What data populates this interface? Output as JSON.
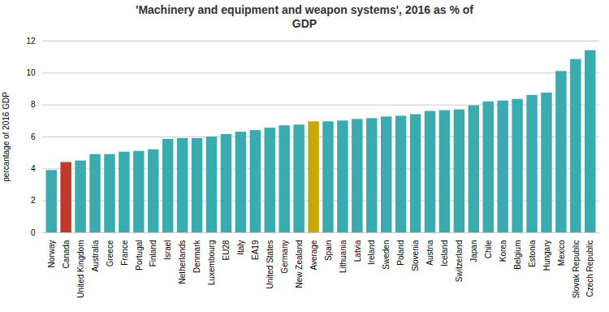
{
  "chart_data": {
    "type": "bar",
    "title": "'Machinery and equipment and weapon systems', 2016 as % of\nGDP",
    "ylabel": "percantage of 2016 GDP",
    "categories": [
      "Norway",
      "Canada",
      "United Kingdom",
      "Australia",
      "Greece",
      "France",
      "Portugal",
      "Finland",
      "Israel",
      "Netherlands",
      "Denmark",
      "Luxembourg",
      "EU28",
      "Italy",
      "EA19",
      "United States",
      "Germany",
      "New Zealand",
      "Average",
      "Spain",
      "Lithuania",
      "Latvia",
      "Ireland",
      "Sweden",
      "Poland",
      "Slovenia",
      "Austria",
      "Iceland",
      "Switzerland",
      "Japan",
      "Chile",
      "Korea",
      "Belgium",
      "Estonia",
      "Hungary",
      "Mexico",
      "Slovak Republic",
      "Czech Republic"
    ],
    "values": [
      3.9,
      4.4,
      4.5,
      4.9,
      4.9,
      5.05,
      5.1,
      5.2,
      5.85,
      5.9,
      5.9,
      6.0,
      6.15,
      6.3,
      6.4,
      6.55,
      6.7,
      6.75,
      6.95,
      6.95,
      7.0,
      7.1,
      7.15,
      7.25,
      7.3,
      7.4,
      7.6,
      7.65,
      7.7,
      7.95,
      8.2,
      8.25,
      8.35,
      8.6,
      8.75,
      10.1,
      10.85,
      11.4
    ],
    "colors": [
      "#3aacb0",
      "#c0392b",
      "#3aacb0",
      "#3aacb0",
      "#3aacb0",
      "#3aacb0",
      "#3aacb0",
      "#3aacb0",
      "#3aacb0",
      "#3aacb0",
      "#3aacb0",
      "#3aacb0",
      "#3aacb0",
      "#3aacb0",
      "#3aacb0",
      "#3aacb0",
      "#3aacb0",
      "#3aacb0",
      "#c8a800",
      "#3aacb0",
      "#3aacb0",
      "#3aacb0",
      "#3aacb0",
      "#3aacb0",
      "#3aacb0",
      "#3aacb0",
      "#3aacb0",
      "#3aacb0",
      "#3aacb0",
      "#3aacb0",
      "#3aacb0",
      "#3aacb0",
      "#3aacb0",
      "#3aacb0",
      "#3aacb0",
      "#3aacb0",
      "#3aacb0",
      "#3aacb0"
    ],
    "ylim": [
      0,
      12
    ],
    "yticks": [
      0,
      2,
      4,
      6,
      8,
      10,
      12
    ],
    "grid": true
  }
}
